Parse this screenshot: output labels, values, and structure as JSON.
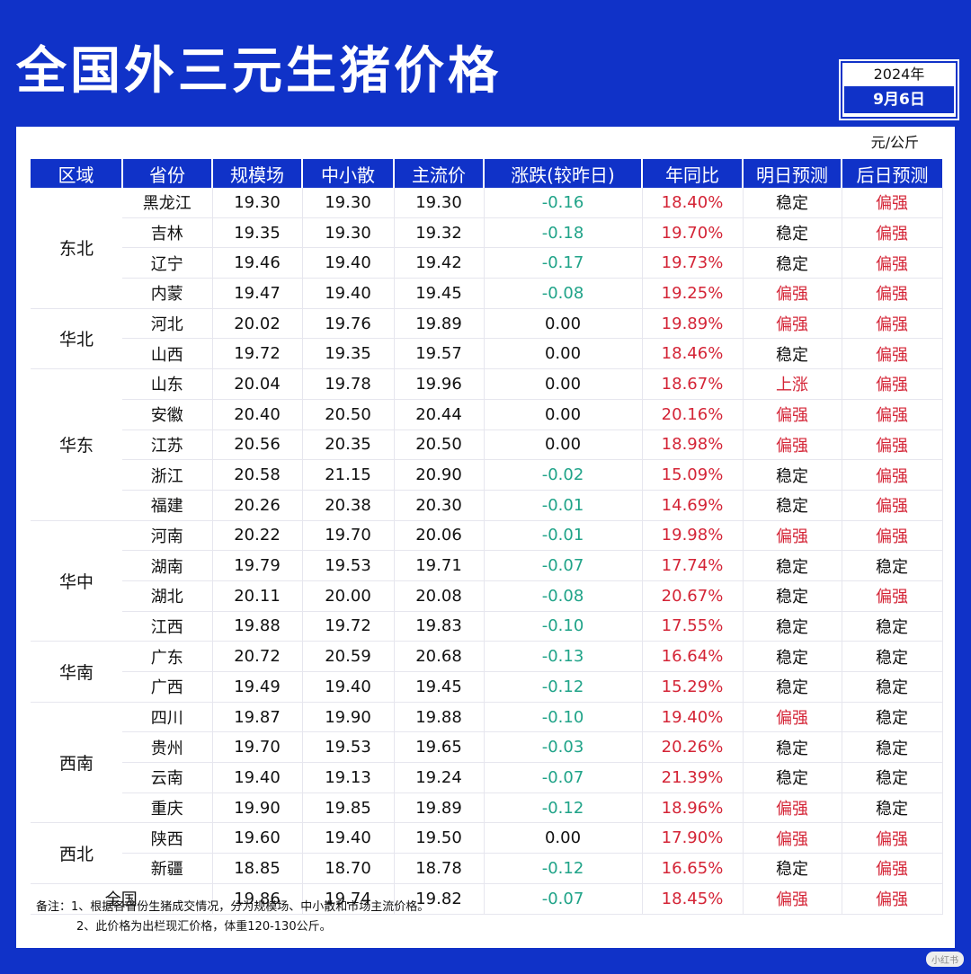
{
  "title": "全国外三元生猪价格",
  "date": {
    "year": "2024年",
    "day": "9月6日"
  },
  "unit": "元/公斤",
  "headers": [
    "区域",
    "省份",
    "规模场",
    "中小散",
    "主流价",
    "涨跌(较昨日)",
    "年同比",
    "明日预测",
    "后日预测"
  ],
  "regions": [
    {
      "name": "东北",
      "rows": [
        [
          "黑龙江",
          "19.30",
          "19.30",
          "19.30",
          "-0.16",
          "18.40%",
          "稳定",
          "偏强"
        ],
        [
          "吉林",
          "19.35",
          "19.30",
          "19.32",
          "-0.18",
          "19.70%",
          "稳定",
          "偏强"
        ],
        [
          "辽宁",
          "19.46",
          "19.40",
          "19.42",
          "-0.17",
          "19.73%",
          "稳定",
          "偏强"
        ],
        [
          "内蒙",
          "19.47",
          "19.40",
          "19.45",
          "-0.08",
          "19.25%",
          "偏强",
          "偏强"
        ]
      ]
    },
    {
      "name": "华北",
      "rows": [
        [
          "河北",
          "20.02",
          "19.76",
          "19.89",
          "0.00",
          "19.89%",
          "偏强",
          "偏强"
        ],
        [
          "山西",
          "19.72",
          "19.35",
          "19.57",
          "0.00",
          "18.46%",
          "稳定",
          "偏强"
        ]
      ]
    },
    {
      "name": "华东",
      "rows": [
        [
          "山东",
          "20.04",
          "19.78",
          "19.96",
          "0.00",
          "18.67%",
          "上涨",
          "偏强"
        ],
        [
          "安徽",
          "20.40",
          "20.50",
          "20.44",
          "0.00",
          "20.16%",
          "偏强",
          "偏强"
        ],
        [
          "江苏",
          "20.56",
          "20.35",
          "20.50",
          "0.00",
          "18.98%",
          "偏强",
          "偏强"
        ],
        [
          "浙江",
          "20.58",
          "21.15",
          "20.90",
          "-0.02",
          "15.09%",
          "稳定",
          "偏强"
        ],
        [
          "福建",
          "20.26",
          "20.38",
          "20.30",
          "-0.01",
          "14.69%",
          "稳定",
          "偏强"
        ]
      ]
    },
    {
      "name": "华中",
      "rows": [
        [
          "河南",
          "20.22",
          "19.70",
          "20.06",
          "-0.01",
          "19.98%",
          "偏强",
          "偏强"
        ],
        [
          "湖南",
          "19.79",
          "19.53",
          "19.71",
          "-0.07",
          "17.74%",
          "稳定",
          "稳定"
        ],
        [
          "湖北",
          "20.11",
          "20.00",
          "20.08",
          "-0.08",
          "20.67%",
          "稳定",
          "偏强"
        ],
        [
          "江西",
          "19.88",
          "19.72",
          "19.83",
          "-0.10",
          "17.55%",
          "稳定",
          "稳定"
        ]
      ]
    },
    {
      "name": "华南",
      "rows": [
        [
          "广东",
          "20.72",
          "20.59",
          "20.68",
          "-0.13",
          "16.64%",
          "稳定",
          "稳定"
        ],
        [
          "广西",
          "19.49",
          "19.40",
          "19.45",
          "-0.12",
          "15.29%",
          "稳定",
          "稳定"
        ]
      ]
    },
    {
      "name": "西南",
      "rows": [
        [
          "四川",
          "19.87",
          "19.90",
          "19.88",
          "-0.10",
          "19.40%",
          "偏强",
          "稳定"
        ],
        [
          "贵州",
          "19.70",
          "19.53",
          "19.65",
          "-0.03",
          "20.26%",
          "稳定",
          "稳定"
        ],
        [
          "云南",
          "19.40",
          "19.13",
          "19.24",
          "-0.07",
          "21.39%",
          "稳定",
          "稳定"
        ],
        [
          "重庆",
          "19.90",
          "19.85",
          "19.89",
          "-0.12",
          "18.96%",
          "偏强",
          "稳定"
        ]
      ]
    },
    {
      "name": "西北",
      "rows": [
        [
          "陕西",
          "19.60",
          "19.40",
          "19.50",
          "0.00",
          "17.90%",
          "偏强",
          "偏强"
        ],
        [
          "新疆",
          "18.85",
          "18.70",
          "18.78",
          "-0.12",
          "16.65%",
          "稳定",
          "偏强"
        ]
      ]
    }
  ],
  "national": [
    "全国",
    "19.86",
    "19.74",
    "19.82",
    "-0.07",
    "18.45%",
    "偏强",
    "偏强"
  ],
  "notes": [
    "备注：1、根据各省份生猪成交情况，分为规模场、中小散和市场主流价格。",
    "2、此价格为出栏现汇价格，体重120-130公斤。"
  ],
  "watermark": "小红书",
  "colors": {
    "brand": "#1032c8",
    "up": "#d42436",
    "down": "#1fa388"
  }
}
